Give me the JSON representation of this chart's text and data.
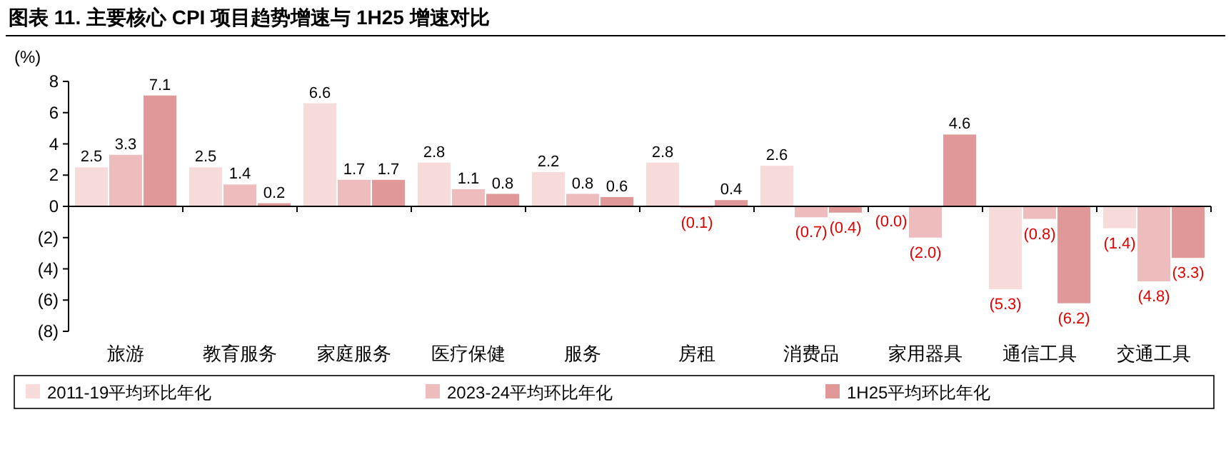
{
  "chart_data": {
    "type": "bar",
    "title": "图表 11. 主要核心 CPI 项目趋势增速与 1H25 增速对比",
    "ylabel": "(%)",
    "categories": [
      "旅游",
      "教育服务",
      "家庭服务",
      "医疗保健",
      "服务",
      "房租",
      "消费品",
      "家用器具",
      "通信工具",
      "交通工具"
    ],
    "series": [
      {
        "name": "2011-19平均环比年化",
        "color": "#f7dada",
        "values": [
          2.5,
          2.5,
          6.6,
          2.8,
          2.2,
          2.8,
          2.6,
          0.0,
          -5.3,
          -1.4
        ],
        "value_labels": [
          "2.5",
          "2.5",
          "6.6",
          "2.8",
          "2.2",
          "2.8",
          "2.6",
          "(0.0)",
          "(5.3)",
          "(1.4)"
        ]
      },
      {
        "name": "2023-24平均环比年化",
        "color": "#eebcbc",
        "values": [
          3.3,
          1.4,
          1.7,
          1.1,
          0.8,
          -0.1,
          -0.7,
          -2.0,
          -0.8,
          -4.8
        ],
        "value_labels": [
          "3.3",
          "1.4",
          "1.7",
          "1.1",
          "0.8",
          "(0.1)",
          "(0.7)",
          "(2.0)",
          "(0.8)",
          "(4.8)"
        ]
      },
      {
        "name": "1H25平均环比年化",
        "color": "#e09898",
        "values": [
          7.1,
          0.2,
          1.7,
          0.8,
          0.6,
          0.4,
          -0.4,
          4.6,
          -6.2,
          -3.3
        ],
        "value_labels": [
          "7.1",
          "0.2",
          "1.7",
          "0.8",
          "0.6",
          "0.4",
          "(0.4)",
          "4.6",
          "(6.2)",
          "(3.3)"
        ]
      }
    ],
    "ylim": [
      -8,
      8
    ],
    "yticks": [
      {
        "value": -8,
        "label": "(8)"
      },
      {
        "value": -6,
        "label": "(6)"
      },
      {
        "value": -4,
        "label": "(4)"
      },
      {
        "value": -2,
        "label": "(2)"
      },
      0,
      2,
      4,
      6,
      8
    ],
    "legend": "bottom"
  }
}
